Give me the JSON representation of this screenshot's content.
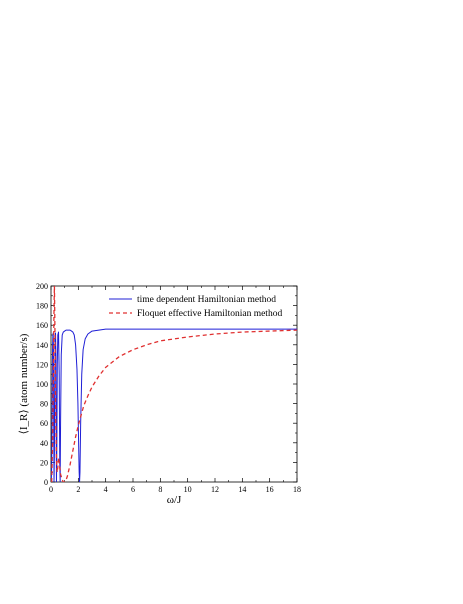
{
  "chart_data": {
    "type": "line",
    "xlabel": "ω/J",
    "ylabel": "⟨I_R⟩ (atom number/s)",
    "xlim": [
      0,
      18
    ],
    "ylim": [
      0,
      200
    ],
    "x_ticks": [
      0,
      2,
      4,
      6,
      8,
      10,
      12,
      14,
      16,
      18
    ],
    "y_ticks": [
      0,
      20,
      40,
      60,
      80,
      100,
      120,
      140,
      160,
      180,
      200
    ],
    "grid": false,
    "legend_position": "top-right",
    "series": [
      {
        "name": "time dependent Hamiltonian method",
        "color": "#1f1fd6",
        "line_style": "solid",
        "points": [
          [
            0.02,
            0
          ],
          [
            0.05,
            15
          ],
          [
            0.08,
            60
          ],
          [
            0.1,
            120
          ],
          [
            0.12,
            140
          ],
          [
            0.14,
            150
          ],
          [
            0.16,
            152
          ],
          [
            0.18,
            135
          ],
          [
            0.2,
            60
          ],
          [
            0.22,
            0
          ],
          [
            0.25,
            30
          ],
          [
            0.28,
            110
          ],
          [
            0.3,
            146
          ],
          [
            0.33,
            152
          ],
          [
            0.36,
            130
          ],
          [
            0.38,
            50
          ],
          [
            0.4,
            0
          ],
          [
            0.43,
            40
          ],
          [
            0.46,
            120
          ],
          [
            0.5,
            150
          ],
          [
            0.55,
            153
          ],
          [
            0.6,
            110
          ],
          [
            0.64,
            20
          ],
          [
            0.67,
            0
          ],
          [
            0.7,
            60
          ],
          [
            0.75,
            130
          ],
          [
            0.82,
            150
          ],
          [
            0.9,
            153
          ],
          [
            1.0,
            154
          ],
          [
            1.1,
            155
          ],
          [
            1.2,
            155
          ],
          [
            1.3,
            155
          ],
          [
            1.4,
            155
          ],
          [
            1.5,
            154
          ],
          [
            1.6,
            153
          ],
          [
            1.7,
            150
          ],
          [
            1.8,
            140
          ],
          [
            1.9,
            115
          ],
          [
            1.97,
            80
          ],
          [
            2.02,
            40
          ],
          [
            2.06,
            10
          ],
          [
            2.09,
            0
          ],
          [
            2.12,
            10
          ],
          [
            2.17,
            60
          ],
          [
            2.25,
            110
          ],
          [
            2.35,
            135
          ],
          [
            2.5,
            146
          ],
          [
            2.7,
            151
          ],
          [
            3.0,
            154
          ],
          [
            3.5,
            155
          ],
          [
            4,
            156
          ],
          [
            6,
            156
          ],
          [
            10,
            156
          ],
          [
            14,
            156
          ],
          [
            18,
            156
          ]
        ]
      },
      {
        "name": "Floquet effective Hamiltonian method",
        "color": "#e03030",
        "line_style": "dashed",
        "points": [
          [
            0.05,
            0
          ],
          [
            0.12,
            40
          ],
          [
            0.18,
            120
          ],
          [
            0.22,
            175
          ],
          [
            0.25,
            200
          ],
          [
            0.3,
            140
          ],
          [
            0.35,
            60
          ],
          [
            0.4,
            25
          ],
          [
            0.45,
            10
          ],
          [
            0.5,
            15
          ],
          [
            0.55,
            25
          ],
          [
            0.6,
            20
          ],
          [
            0.7,
            8
          ],
          [
            0.8,
            3
          ],
          [
            0.9,
            0
          ],
          [
            1.0,
            0
          ],
          [
            1.1,
            2
          ],
          [
            1.2,
            6
          ],
          [
            1.4,
            18
          ],
          [
            1.6,
            32
          ],
          [
            1.8,
            46
          ],
          [
            2.0,
            58
          ],
          [
            2.2,
            68
          ],
          [
            2.4,
            78
          ],
          [
            2.7,
            88
          ],
          [
            3.0,
            97
          ],
          [
            3.5,
            108
          ],
          [
            4,
            117
          ],
          [
            5,
            128
          ],
          [
            6,
            135
          ],
          [
            7,
            140
          ],
          [
            8,
            144
          ],
          [
            9,
            146
          ],
          [
            10,
            148
          ],
          [
            12,
            151
          ],
          [
            14,
            153
          ],
          [
            16,
            154
          ],
          [
            18,
            155
          ]
        ]
      }
    ]
  }
}
